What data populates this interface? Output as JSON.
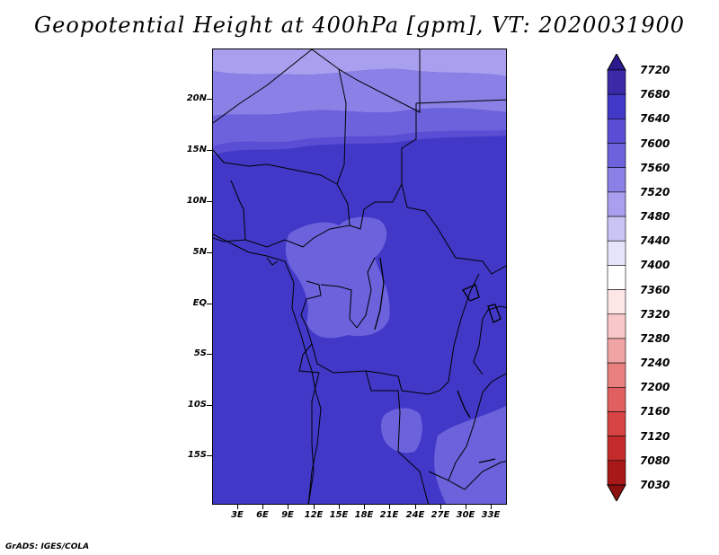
{
  "title": "Geopotential Height at 400hPa [gpm], VT: 2020031900",
  "credit": "GrADS: IGES/COLA",
  "map": {
    "variable": "Geopotential Height",
    "level": "400hPa",
    "units": "gpm",
    "valid_time": "2020031900",
    "lat_labels": [
      "20N",
      "15N",
      "10N",
      "5N",
      "EQ",
      "5S",
      "10S",
      "15S"
    ],
    "lon_labels": [
      "3E",
      "6E",
      "9E",
      "12E",
      "15E",
      "18E",
      "21E",
      "24E",
      "27E",
      "30E",
      "33E"
    ],
    "dominant_fill_color": "#4238c8"
  },
  "colorbar": {
    "orientation": "vertical",
    "end_arrows": true,
    "labels": [
      "7720",
      "7680",
      "7640",
      "7600",
      "7560",
      "7520",
      "7480",
      "7440",
      "7400",
      "7360",
      "7320",
      "7280",
      "7240",
      "7200",
      "7160",
      "7120",
      "7080",
      "7030"
    ],
    "colors": [
      "#2a1a8e",
      "#3a2aa8",
      "#4238c8",
      "#5a4ed4",
      "#6b62dc",
      "#8a80e6",
      "#a8a0ee",
      "#c8c4f4",
      "#e6e4fa",
      "#ffffff",
      "#fde6e6",
      "#f8c8c8",
      "#f0a4a4",
      "#e88080",
      "#e06060",
      "#d84444",
      "#c42c2c",
      "#a81818",
      "#8c1010"
    ]
  }
}
